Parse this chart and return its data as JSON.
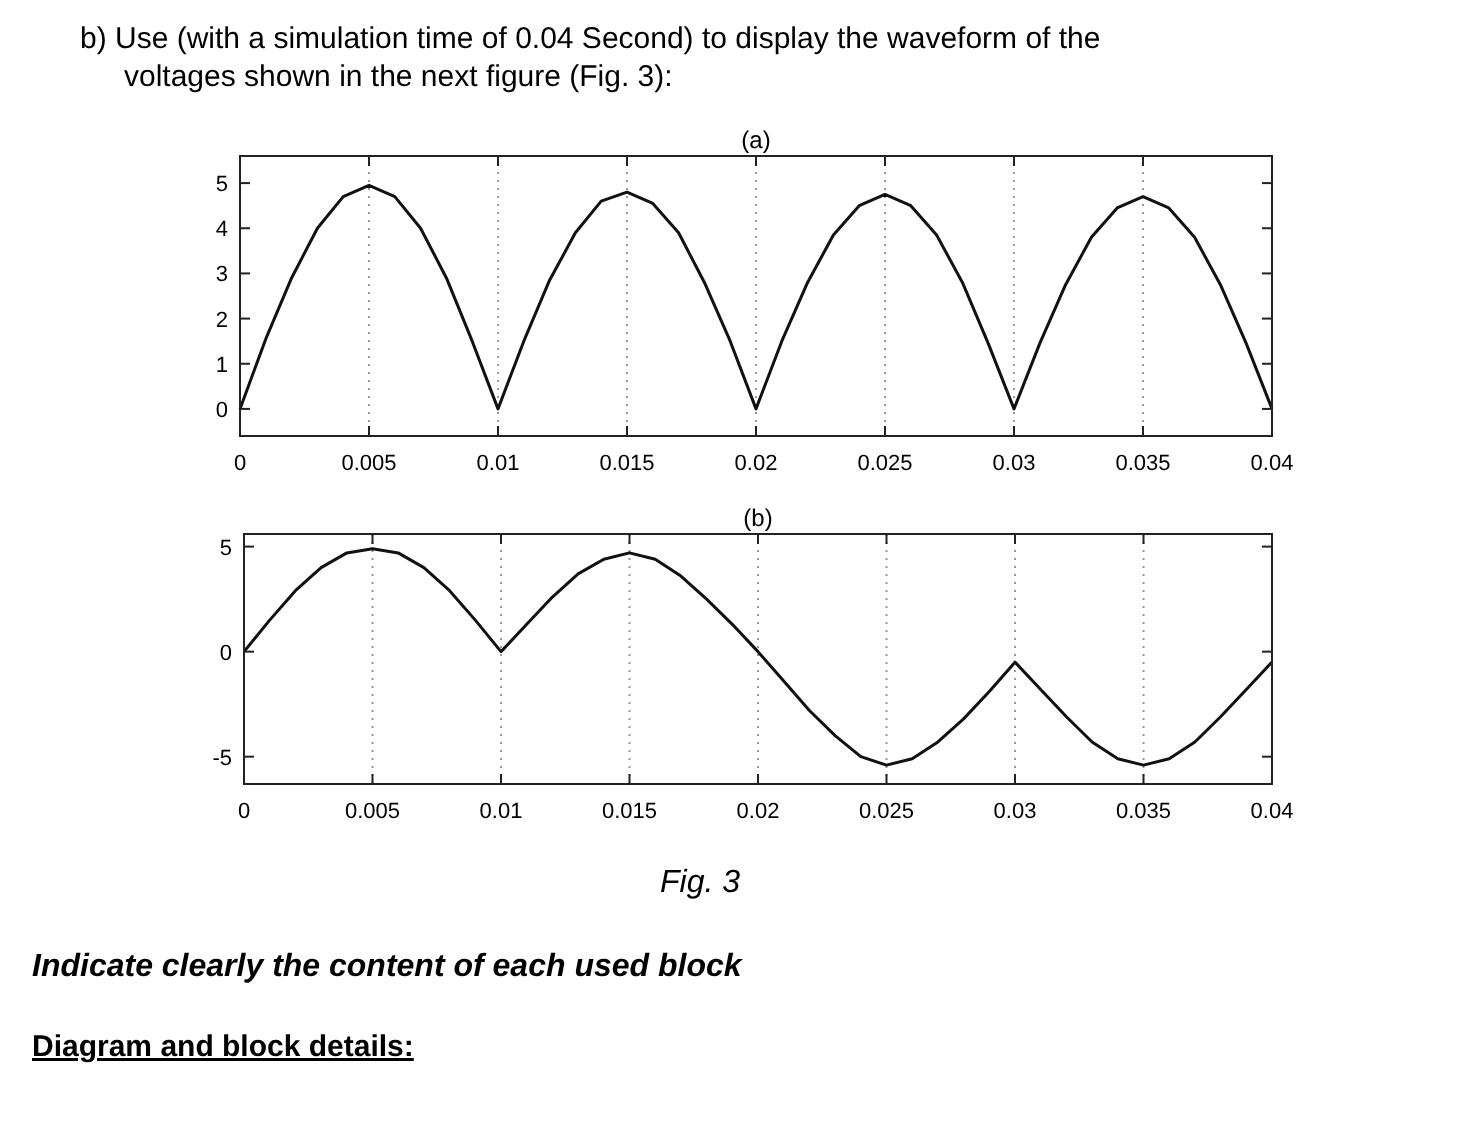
{
  "chart_data": [
    {
      "type": "line",
      "title": "(a)",
      "annotations": [
        "b) Use (with a simulation time of 0.04 Second) to display the waveform of the voltages shown in the next figure (Fig. 3):"
      ],
      "x": [
        0,
        0.001,
        0.002,
        0.003,
        0.004,
        0.005,
        0.006,
        0.007,
        0.008,
        0.009,
        0.01,
        0.011,
        0.012,
        0.013,
        0.014,
        0.015,
        0.016,
        0.017,
        0.018,
        0.019,
        0.02,
        0.021,
        0.022,
        0.023,
        0.024,
        0.025,
        0.026,
        0.027,
        0.028,
        0.029,
        0.03,
        0.031,
        0.032,
        0.033,
        0.034,
        0.035,
        0.036,
        0.037,
        0.038,
        0.039,
        0.04
      ],
      "series": [
        {
          "color": "#111111",
          "values": [
            0,
            1.55,
            2.9,
            4.0,
            4.7,
            4.95,
            4.7,
            4.0,
            2.9,
            1.5,
            0,
            1.5,
            2.85,
            3.9,
            4.6,
            4.8,
            4.55,
            3.9,
            2.8,
            1.5,
            0,
            1.5,
            2.8,
            3.85,
            4.5,
            4.75,
            4.5,
            3.85,
            2.8,
            1.45,
            0,
            1.45,
            2.75,
            3.8,
            4.45,
            4.7,
            4.45,
            3.8,
            2.75,
            1.45,
            0
          ]
        }
      ],
      "xlim": [
        0,
        0.04
      ],
      "xticks": [
        0,
        0.005,
        0.01,
        0.015,
        0.02,
        0.025,
        0.03,
        0.035,
        0.04
      ],
      "ylim": [
        -0.6,
        5.6
      ],
      "yticks": [
        0,
        1,
        2,
        3,
        4,
        5
      ],
      "grid": "x"
    },
    {
      "type": "line",
      "title": "(b)",
      "annotations": [
        "Fig. 3",
        "Indicate clearly the content of each used block",
        "Diagram and block details:"
      ],
      "x": [
        0,
        0.001,
        0.002,
        0.003,
        0.004,
        0.005,
        0.006,
        0.007,
        0.008,
        0.009,
        0.01,
        0.011,
        0.012,
        0.013,
        0.014,
        0.015,
        0.016,
        0.017,
        0.018,
        0.019,
        0.02,
        0.021,
        0.022,
        0.023,
        0.024,
        0.025,
        0.026,
        0.027,
        0.028,
        0.029,
        0.03,
        0.031,
        0.032,
        0.033,
        0.034,
        0.035,
        0.036,
        0.037,
        0.038,
        0.039,
        0.04
      ],
      "series": [
        {
          "color": "#111111",
          "values": [
            0,
            1.5,
            2.9,
            4.0,
            4.7,
            4.9,
            4.7,
            4.0,
            2.9,
            1.5,
            0,
            1.3,
            2.6,
            3.7,
            4.4,
            4.7,
            4.4,
            3.6,
            2.5,
            1.3,
            0,
            -1.4,
            -2.8,
            -4.0,
            -5.0,
            -5.4,
            -5.1,
            -4.3,
            -3.2,
            -1.9,
            -0.5,
            -1.8,
            -3.1,
            -4.3,
            -5.1,
            -5.4,
            -5.1,
            -4.3,
            -3.1,
            -1.8,
            -0.5
          ]
        }
      ],
      "xlim": [
        0,
        0.04
      ],
      "xticks": [
        0,
        0.005,
        0.01,
        0.015,
        0.02,
        0.025,
        0.03,
        0.035,
        0.04
      ],
      "ylim": [
        -6.3,
        5.6
      ],
      "yticks": [
        -5,
        0,
        5
      ],
      "grid": "x"
    }
  ]
}
